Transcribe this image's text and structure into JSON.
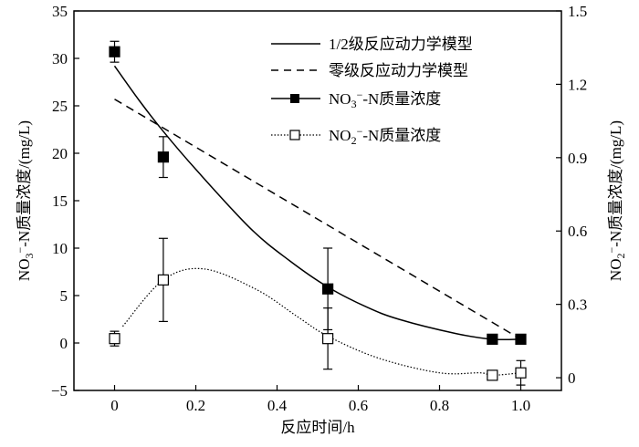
{
  "chart_data": {
    "type": "scatter",
    "title": "",
    "xlabel": "反应时间/h",
    "ylabel_left": {
      "main": "NO",
      "sub": "3",
      "sup": "−",
      "rest": "-N质量浓度/(mg/L)"
    },
    "ylabel_right": {
      "main": "NO",
      "sub": "2",
      "sup": "−",
      "rest": "-N质量浓度/(mg/L)"
    },
    "xlim": [
      -0.1,
      1.1
    ],
    "ylim_left": [
      -5,
      35
    ],
    "ylim_right": [
      -0.052,
      1.5
    ],
    "x_ticks": [
      "0",
      "0.2",
      "0.4",
      "0.6",
      "0.8",
      "1.0"
    ],
    "x_tick_values": [
      0,
      0.2,
      0.4,
      0.6,
      0.8,
      1.0
    ],
    "y_left_ticks": [
      "−5",
      "0",
      "5",
      "10",
      "15",
      "20",
      "25",
      "30",
      "35"
    ],
    "y_left_tick_values": [
      -5,
      0,
      5,
      10,
      15,
      20,
      25,
      30,
      35
    ],
    "y_right_ticks": [
      "0",
      "0.3",
      "0.6",
      "0.9",
      "1.2",
      "1.5"
    ],
    "y_right_tick_values": [
      0,
      0.3,
      0.6,
      0.9,
      1.2,
      1.5
    ],
    "grid": false,
    "legend_position": "top-right",
    "series": [
      {
        "name": "1/2级反应动力学模型",
        "kind": "line",
        "style": "solid",
        "axis": "left",
        "x": [
          0,
          0.06,
          0.12,
          0.2,
          0.334,
          0.43,
          0.525,
          0.62,
          0.7,
          0.84,
          0.93,
          1.0
        ],
        "y": [
          29.2,
          25.6,
          22.3,
          18.3,
          12.1,
          8.7,
          5.9,
          3.8,
          2.5,
          1.0,
          0.4,
          0.4
        ]
      },
      {
        "name": "零级反应动力学模型",
        "kind": "line",
        "style": "dashed",
        "axis": "left",
        "x": [
          0,
          1.0
        ],
        "y": [
          25.7,
          0.4
        ]
      },
      {
        "name": "NO3−-N质量浓度",
        "legend": {
          "main": "NO",
          "sub": "3",
          "sup": "−",
          "rest": "-N质量浓度"
        },
        "kind": "marker",
        "marker": "filled-square",
        "axis": "left",
        "x": [
          0,
          0.12,
          0.525,
          0.93,
          1.0
        ],
        "y": [
          30.7,
          19.6,
          5.7,
          0.4,
          0.4
        ],
        "err": [
          1.1,
          2.15,
          4.3,
          0.2,
          0.2
        ]
      },
      {
        "name": "NO2−-N质量浓度",
        "legend": {
          "main": "NO",
          "sub": "2",
          "sup": "−",
          "rest": "-N质量浓度"
        },
        "kind": "marker",
        "marker": "open-square",
        "axis": "right",
        "x": [
          0,
          0.12,
          0.525,
          0.93,
          1.0
        ],
        "y": [
          0.16,
          0.4,
          0.16,
          0.01,
          0.02
        ],
        "err": [
          0.03,
          0.17,
          0.125,
          0.01,
          0.05
        ],
        "curve_x": [
          0.02,
          0.12,
          0.22,
          0.35,
          0.45,
          0.525,
          0.65,
          0.8,
          0.9,
          0.93,
          1.0
        ],
        "curve_y": [
          0.21,
          0.4,
          0.445,
          0.36,
          0.25,
          0.17,
          0.08,
          0.02,
          0.02,
          0.01,
          0.02
        ]
      }
    ]
  }
}
